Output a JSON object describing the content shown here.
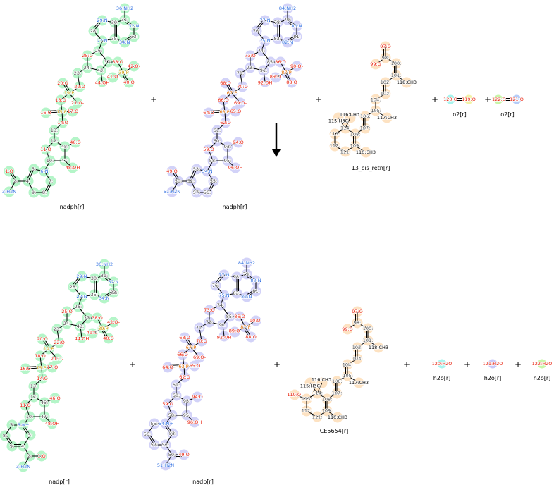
{
  "plus": "+",
  "reaction_arrow": "down-arrow-icon",
  "colors": {
    "green": "#b4f5c8",
    "lavender": "#d2d2f8",
    "peach": "#fde2c2",
    "O": "#e8200c",
    "N": "#2f6fe0",
    "P1": "#c99a00",
    "P2": "#e06a00"
  },
  "reactants": [
    {
      "name": "nadph[r]",
      "atoms": [
        "36:NH2",
        "31:",
        "32:N",
        "33:",
        "34:N",
        "35:",
        "30:",
        "29:N",
        "28:",
        "27:N",
        "26:",
        "25:O",
        "24:",
        "37:",
        "43:",
        "44:OH",
        "38:O",
        "39:P",
        "42:O-",
        "41:O",
        "40:O",
        "23:",
        "22:O",
        "19:P",
        "20:O",
        "21:O-",
        "18:O",
        "15:P",
        "16:O",
        "17:O",
        "14:O",
        "13:",
        "12:",
        "11:O",
        "10:",
        "45:",
        "46:O",
        "47:",
        "48:OH",
        "6:N",
        "5:",
        "4:",
        "9:",
        "8:",
        "7:",
        "2:",
        "1:O",
        "3:H2N"
      ]
    },
    {
      "name": "nadph[r]",
      "atoms": [
        "84:NH2",
        "79:",
        "80:N",
        "81:",
        "82:N",
        "83:",
        "78:",
        "77:N",
        "76:",
        "75:N",
        "74:",
        "73:O",
        "72:",
        "85:",
        "91:",
        "92:OH",
        "86:O",
        "87:P",
        "90:O-",
        "89:O",
        "88:O",
        "71:",
        "70:O",
        "67:P",
        "68:O",
        "69:O-",
        "66:O",
        "63:P",
        "64:O",
        "65:O",
        "62:O",
        "61:",
        "60:",
        "59:O",
        "58:",
        "93:",
        "94:O",
        "95:",
        "96:OH",
        "54:N",
        "53:",
        "52:",
        "57:",
        "56:",
        "55:",
        "50:",
        "49:O",
        "51:H2N"
      ]
    },
    {
      "name": "13_cis_retn[r]",
      "atoms": [
        "97:O",
        "98:",
        "99:O",
        "100:",
        "101:",
        "118:CH3",
        "102:",
        "103:",
        "104:",
        "105:",
        "117:CH3",
        "106:",
        "107:",
        "108:",
        "109:",
        "110:CH3",
        "111:",
        "112:",
        "113:",
        "114:",
        "115:H3C",
        "116:CH3"
      ]
    },
    {
      "name": "o2[r]",
      "atoms": [
        "120:O",
        "119:O"
      ]
    },
    {
      "name": "o2[r]",
      "atoms": [
        "122:O",
        "121:O"
      ]
    }
  ],
  "products": [
    {
      "name": "nadp[r]",
      "atoms": [
        "36:NH2",
        "31:",
        "32:N",
        "33:",
        "34:N",
        "35:",
        "30:",
        "29:N",
        "28:",
        "27:N",
        "26:",
        "25:O",
        "24:",
        "37:",
        "43:",
        "44:OH",
        "38:O",
        "39:P",
        "42:O-",
        "41:O",
        "40:O",
        "23:",
        "22:O",
        "19:P",
        "20:O",
        "21:O-",
        "18:O",
        "15:P",
        "16:O",
        "17:O",
        "14:O",
        "13:",
        "12:",
        "11:O",
        "10:",
        "45:",
        "46:O",
        "47:",
        "48:OH",
        "6:N+",
        "5:",
        "4:",
        "9:",
        "8:",
        "7:",
        "2:",
        "1:O",
        "3:H2N"
      ]
    },
    {
      "name": "nadp[r]",
      "atoms": [
        "84:NH2",
        "79:",
        "80:N",
        "81:",
        "82:N",
        "83:",
        "78:",
        "77:N",
        "76:",
        "75:N",
        "74:",
        "73:O",
        "72:",
        "85:",
        "91:",
        "92:OH",
        "86:O",
        "87:P",
        "90:O-",
        "89:O",
        "88:O",
        "71:",
        "70:O",
        "67:P",
        "68:O",
        "69:O-",
        "66:O",
        "63:P",
        "64:O",
        "65:O",
        "62:O",
        "61:",
        "60:",
        "59:O",
        "58:",
        "93:",
        "94:O",
        "95:",
        "96:OH",
        "54:N+",
        "53:",
        "52:",
        "57:",
        "56:",
        "55:",
        "50:",
        "49:O",
        "51:H2N"
      ]
    },
    {
      "name": "CE5654[r]",
      "atoms": [
        "97:O",
        "98:",
        "99:O",
        "100:",
        "101:",
        "118:CH3",
        "102:",
        "103:",
        "104:",
        "105:",
        "117:CH3",
        "106:",
        "107:",
        "108:",
        "109:",
        "110:CH3",
        "111:",
        "112:",
        "113:",
        "114:",
        "115:H3C",
        "116:CH3",
        "119:O"
      ]
    },
    {
      "name": "h2o[r]",
      "atoms": [
        "120:H2O"
      ]
    },
    {
      "name": "h2o[r]",
      "atoms": [
        "121:H2O"
      ]
    },
    {
      "name": "h2o[r]",
      "atoms": [
        "122:H2O"
      ]
    }
  ]
}
